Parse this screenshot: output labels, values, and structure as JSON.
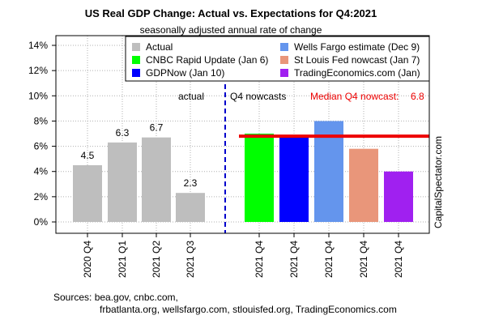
{
  "chart_data": {
    "type": "bar",
    "title": "US Real GDP Change: Actual vs. Expectations for Q4:2021",
    "subtitle": "seasonally adjusted annual rate of change",
    "ylim": [
      0,
      14
    ],
    "y_ticks": [
      "0%",
      "2%",
      "4%",
      "6%",
      "8%",
      "10%",
      "12%",
      "14%"
    ],
    "grid": true,
    "legend_position": "top-right",
    "categories": [
      "2020 Q4",
      "2021 Q1",
      "2021 Q2",
      "2021 Q3",
      "2021 Q4",
      "2021 Q4",
      "2021 Q4",
      "2021 Q4",
      "2021 Q4"
    ],
    "values": [
      4.5,
      6.3,
      6.7,
      2.3,
      7.0,
      6.8,
      8.0,
      5.8,
      4.0
    ],
    "bar_colors": [
      "#bebebe",
      "#bebebe",
      "#bebebe",
      "#bebebe",
      "#00ff00",
      "#0000ff",
      "#6495ed",
      "#e9967a",
      "#a020f0"
    ],
    "data_labels": [
      "4.5",
      "6.3",
      "6.7",
      "2.3",
      "",
      "",
      "",
      "",
      ""
    ],
    "legend": [
      {
        "label": "Actual",
        "color": "#bebebe"
      },
      {
        "label": "CNBC Rapid Update (Jan 6)",
        "color": "#00ff00"
      },
      {
        "label": "GDPNow (Jan 10)",
        "color": "#0000ff"
      },
      {
        "label": "Wells Fargo estimate (Dec 9)",
        "color": "#6495ed"
      },
      {
        "label": "St Louis Fed nowcast (Jan 7)",
        "color": "#e9967a"
      },
      {
        "label": "TradingEconomics.com (Jan)",
        "color": "#a020f0"
      }
    ],
    "median": {
      "value": 6.8,
      "label": "Median Q4 nowcast:",
      "value_label": "6.8",
      "color": "#ee0000"
    },
    "annotations": {
      "actual": "actual",
      "nowcasts": "Q4 nowcasts"
    },
    "side_label": "CapitalSpectator.com",
    "sources_line1": "Sources: bea.gov, cnbc.com,",
    "sources_line2": "frbatlanta.org, wellsfargo.com, stlouisfed.org, TradingEconomics.com"
  }
}
